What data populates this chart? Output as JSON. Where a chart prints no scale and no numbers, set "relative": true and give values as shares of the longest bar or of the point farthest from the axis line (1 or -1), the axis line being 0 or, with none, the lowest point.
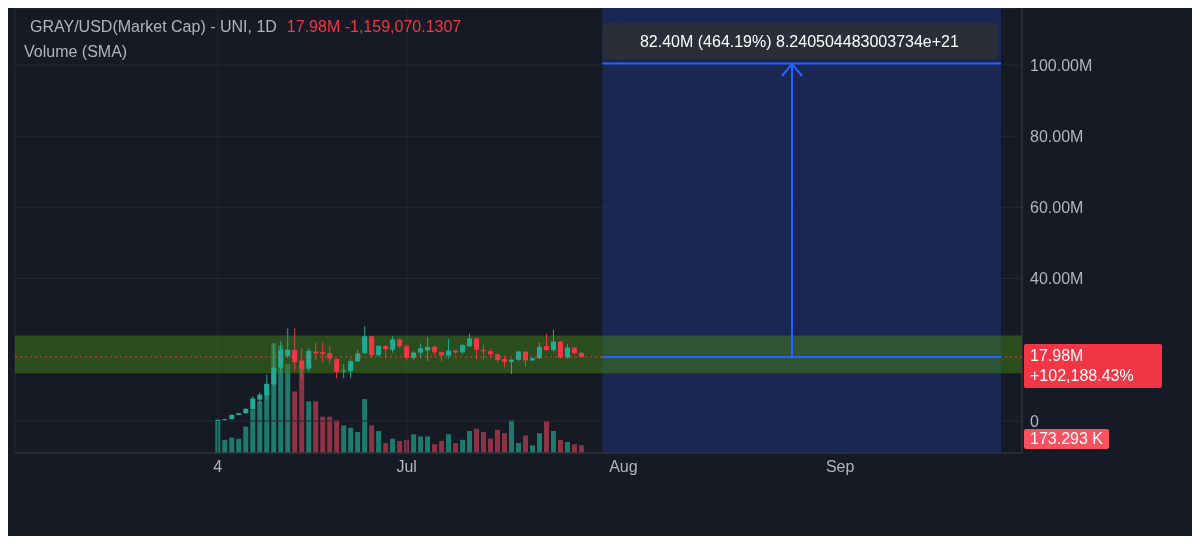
{
  "chart_data": [
    {
      "type": "candlestick",
      "title": "GRAY/USD(Market Cap)  - UNI, 1D",
      "subtitle": "17.98M -1,159,070.1307",
      "x": [
        "--06-04",
        "--06-05",
        "--06-06",
        "--06-07",
        "--06-08",
        "--06-09",
        "--06-10",
        "--06-11",
        "--06-12",
        "--06-13",
        "--06-14",
        "--06-15",
        "--06-16",
        "--06-17",
        "--06-18",
        "--06-19",
        "--06-20",
        "--06-21",
        "--06-22",
        "--06-23",
        "--06-24",
        "--06-25",
        "--06-26",
        "--06-27",
        "--06-28",
        "--06-29",
        "--06-30",
        "--07-01",
        "--07-02",
        "--07-03",
        "--07-04",
        "--07-05",
        "--07-06",
        "--07-07",
        "--07-08",
        "--07-09",
        "--07-10",
        "--07-11",
        "--07-12",
        "--07-13",
        "--07-14",
        "--07-15",
        "--07-16",
        "--07-17",
        "--07-18",
        "--07-19",
        "--07-20",
        "--07-21",
        "--07-22",
        "--07-23",
        "--07-24",
        "--07-25",
        "--07-26"
      ],
      "ohlc": [
        [
          0.1,
          0.4,
          0.05,
          0.3
        ],
        [
          0.3,
          0.6,
          0.2,
          0.5
        ],
        [
          0.5,
          1.8,
          0.4,
          1.7
        ],
        [
          1.7,
          2.3,
          1.6,
          2.2
        ],
        [
          2.2,
          3.6,
          2.0,
          3.4
        ],
        [
          3.3,
          7.0,
          3.0,
          6.3
        ],
        [
          6.0,
          8.0,
          5.0,
          7.4
        ],
        [
          7.2,
          13.0,
          6.0,
          10.3
        ],
        [
          10.3,
          21.5,
          10.0,
          15.0
        ],
        [
          15.0,
          22.5,
          13.5,
          20.0
        ],
        [
          18.3,
          26.0,
          17.6,
          20.0
        ],
        [
          19.9,
          26.0,
          14.0,
          16.5
        ],
        [
          17.0,
          20.6,
          12.0,
          14.7
        ],
        [
          14.7,
          20.5,
          13.8,
          19.7
        ],
        [
          19.5,
          22.0,
          17.0,
          19.0
        ],
        [
          19.3,
          22.0,
          16.5,
          18.8
        ],
        [
          19.0,
          21.0,
          16.2,
          17.5
        ],
        [
          17.4,
          17.5,
          12.0,
          13.8
        ],
        [
          13.9,
          16.0,
          12.0,
          14.2
        ],
        [
          14.0,
          17.3,
          12.0,
          16.8
        ],
        [
          16.8,
          20.0,
          16.5,
          19.0
        ],
        [
          19.0,
          26.6,
          19.0,
          23.8
        ],
        [
          23.8,
          23.8,
          17.6,
          18.5
        ],
        [
          18.5,
          21.2,
          18.0,
          21.1
        ],
        [
          21.1,
          21.3,
          17.6,
          20.2
        ],
        [
          20.0,
          23.8,
          19.2,
          22.9
        ],
        [
          22.9,
          23.2,
          20.5,
          21.0
        ],
        [
          21.0,
          21.5,
          17.0,
          17.7
        ],
        [
          17.7,
          19.5,
          17.0,
          19.2
        ],
        [
          19.2,
          21.8,
          17.6,
          20.4
        ],
        [
          19.8,
          23.5,
          16.8,
          20.8
        ],
        [
          20.8,
          21.2,
          18.5,
          19.3
        ],
        [
          19.3,
          19.5,
          16.8,
          18.4
        ],
        [
          18.4,
          23.0,
          17.5,
          19.8
        ],
        [
          19.8,
          20.0,
          18.8,
          19.3
        ],
        [
          19.3,
          21.6,
          18.8,
          21.3
        ],
        [
          21.0,
          24.5,
          20.8,
          23.2
        ],
        [
          23.2,
          23.4,
          17.4,
          20.0
        ],
        [
          20.0,
          21.4,
          17.2,
          19.6
        ],
        [
          19.6,
          20.3,
          17.6,
          18.7
        ],
        [
          18.7,
          19.0,
          16.4,
          17.1
        ],
        [
          17.4,
          18.2,
          15.1,
          16.6
        ],
        [
          16.6,
          17.5,
          13.2,
          17.2
        ],
        [
          17.2,
          19.8,
          16.8,
          19.5
        ],
        [
          19.5,
          19.5,
          15.2,
          17.0
        ],
        [
          17.0,
          17.8,
          16.8,
          17.6
        ],
        [
          17.6,
          22.0,
          17.4,
          20.8
        ],
        [
          21.0,
          24.5,
          19.7,
          19.9
        ],
        [
          19.9,
          25.6,
          19.5,
          22.3
        ],
        [
          22.3,
          22.5,
          17.6,
          17.8
        ],
        [
          17.8,
          21.6,
          17.5,
          20.6
        ],
        [
          20.6,
          20.8,
          18.6,
          19.1
        ],
        [
          19.1,
          19.3,
          17.8,
          17.98
        ]
      ],
      "colors": [
        "#22ab94",
        "#22ab94",
        "#22ab94",
        "#22ab94",
        "#22ab94",
        "#22ab94",
        "#22ab94",
        "#22ab94",
        "#22ab94",
        "#22ab94",
        "#22ab94",
        "#f23645",
        "#f23645",
        "#22ab94",
        "#f23645",
        "#f23645",
        "#f23645",
        "#f23645",
        "#22ab94",
        "#22ab94",
        "#22ab94",
        "#22ab94",
        "#f23645",
        "#22ab94",
        "#f23645",
        "#22ab94",
        "#f23645",
        "#f23645",
        "#22ab94",
        "#22ab94",
        "#22ab94",
        "#f23645",
        "#f23645",
        "#22ab94",
        "#f23645",
        "#22ab94",
        "#22ab94",
        "#f23645",
        "#f23645",
        "#f23645",
        "#f23645",
        "#f23645",
        "#22ab94",
        "#22ab94",
        "#f23645",
        "#22ab94",
        "#22ab94",
        "#f23645",
        "#22ab94",
        "#f23645",
        "#22ab94",
        "#f23645",
        "#f23645"
      ],
      "series": [
        {
          "type": "line",
          "x": [
            "--07-29",
            "--09-24"
          ],
          "values": [
            100.4,
            100.4
          ],
          "color": "#2962ff"
        },
        {
          "type": "line",
          "x": [
            "--07-29",
            "--09-24"
          ],
          "values": [
            18,
            18
          ],
          "color": "#2962ff"
        }
      ],
      "xlim": [
        "--05-06",
        "--09-27"
      ],
      "xticks": [
        {
          "value": "--06-04",
          "label": "4"
        },
        {
          "value": "--07-01",
          "label": "Jul"
        },
        {
          "value": "--08-01",
          "label": "Aug"
        },
        {
          "value": "--09-01",
          "label": "Sep"
        }
      ],
      "ylim": [
        -9,
        116
      ],
      "yticks": [
        0,
        {
          "value": 40,
          "label": "40.00M"
        },
        {
          "value": 60,
          "label": "60.00M"
        },
        {
          "value": 80,
          "label": "80.00M"
        },
        {
          "value": 100,
          "label": "100.00M"
        }
      ],
      "grid": true,
      "ref_lines": [
        {
          "axis": "y",
          "value": 17.98,
          "label": "17.98M +102,188.43%",
          "color": "#f23645",
          "line_style": "dotted"
        }
      ],
      "bands": [
        {
          "axis": "x",
          "from": "--07-29",
          "to": "--09-24",
          "color": "#1c2a5c",
          "label": "82.40M (464.19%) 8.240504483003734e+21"
        },
        {
          "axis": "y",
          "from": 13.4,
          "to": 24,
          "color": "#3f7a1c"
        }
      ]
    },
    {
      "type": "bar",
      "title": "Volume (SMA)",
      "relative": true,
      "tick_labels": false,
      "x": [
        "--06-04",
        "--06-05",
        "--06-06",
        "--06-07",
        "--06-08",
        "--06-09",
        "--06-10",
        "--06-11",
        "--06-12",
        "--06-13",
        "--06-14",
        "--06-15",
        "--06-16",
        "--06-17",
        "--06-18",
        "--06-19",
        "--06-20",
        "--06-21",
        "--06-22",
        "--06-23",
        "--06-24",
        "--06-25",
        "--06-26",
        "--06-27",
        "--06-28",
        "--06-29",
        "--06-30",
        "--07-01",
        "--07-02",
        "--07-03",
        "--07-04",
        "--07-05",
        "--07-06",
        "--07-07",
        "--07-08",
        "--07-09",
        "--07-10",
        "--07-11",
        "--07-12",
        "--07-13",
        "--07-14",
        "--07-15",
        "--07-16",
        "--07-17",
        "--07-18",
        "--07-19",
        "--07-20",
        "--07-21",
        "--07-22",
        "--07-23",
        "--07-24",
        "--07-25",
        "--07-26"
      ],
      "xlim": [
        "--05-06",
        "--09-27"
      ],
      "values": [
        0.3,
        0.12,
        0.14,
        0.13,
        0.24,
        0.39,
        0.47,
        0.63,
        1,
        0.98,
        0.81,
        0.56,
        0.8,
        0.47,
        0.47,
        0.33,
        0.33,
        0.3,
        0.25,
        0.23,
        0.19,
        0.49,
        0.25,
        0.2,
        0.09,
        0.13,
        0.11,
        0.12,
        0.17,
        0.15,
        0.15,
        0.08,
        0.11,
        0.17,
        0.09,
        0.12,
        0.2,
        0.22,
        0.19,
        0.13,
        0.21,
        0.18,
        0.3,
        0.09,
        0.16,
        0.07,
        0.18,
        0.29,
        0.2,
        0.12,
        0.1,
        0.08,
        0.07
      ],
      "colors": [
        "#1f7a6e",
        "#1f7a6e",
        "#1f7a6e",
        "#1f7a6e",
        "#1f7a6e",
        "#1f7a6e",
        "#1f7a6e",
        "#1f7a6e",
        "#1f7a6e",
        "#1f7a6e",
        "#1f7a6e",
        "#8e3344",
        "#8e3344",
        "#1f7a6e",
        "#8e3344",
        "#8e3344",
        "#8e3344",
        "#8e3344",
        "#1f7a6e",
        "#1f7a6e",
        "#1f7a6e",
        "#1f7a6e",
        "#8e3344",
        "#1f7a6e",
        "#8e3344",
        "#1f7a6e",
        "#8e3344",
        "#8e3344",
        "#1f7a6e",
        "#1f7a6e",
        "#1f7a6e",
        "#8e3344",
        "#8e3344",
        "#1f7a6e",
        "#8e3344",
        "#1f7a6e",
        "#1f7a6e",
        "#8e3344",
        "#8e3344",
        "#8e3344",
        "#8e3344",
        "#8e3344",
        "#1f7a6e",
        "#1f7a6e",
        "#8e3344",
        "#1f7a6e",
        "#1f7a6e",
        "#8e3344",
        "#1f7a6e",
        "#8e3344",
        "#1f7a6e",
        "#8e3344",
        "#8e3344"
      ],
      "annotations": [
        "173.293 K"
      ]
    }
  ]
}
